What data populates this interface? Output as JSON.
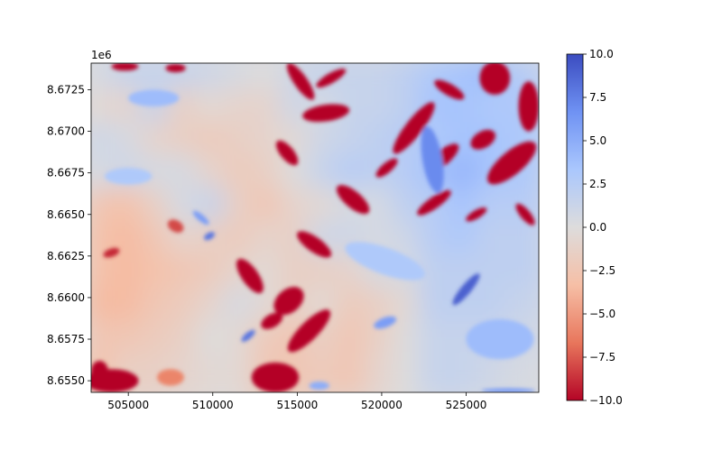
{
  "chart_data": {
    "type": "heatmap",
    "title": "",
    "xlabel": "",
    "ylabel": "",
    "y_offset_label": "1e6",
    "x_ticks": [
      {
        "value": 505000,
        "label": "505000"
      },
      {
        "value": 510000,
        "label": "510000"
      },
      {
        "value": 515000,
        "label": "515000"
      },
      {
        "value": 520000,
        "label": "520000"
      },
      {
        "value": 525000,
        "label": "525000"
      }
    ],
    "y_ticks": [
      {
        "value": 8655000,
        "label": "8.6550"
      },
      {
        "value": 8657500,
        "label": "8.6575"
      },
      {
        "value": 8660000,
        "label": "8.6600"
      },
      {
        "value": 8662500,
        "label": "8.6625"
      },
      {
        "value": 8665000,
        "label": "8.6650"
      },
      {
        "value": 8667500,
        "label": "8.6675"
      },
      {
        "value": 8670000,
        "label": "8.6700"
      },
      {
        "value": 8672500,
        "label": "8.6725"
      }
    ],
    "xlim": [
      502800,
      529300
    ],
    "ylim": [
      8654300,
      8674100
    ],
    "colormap": "coolwarm",
    "colormap_reversed": true,
    "colormap_stops": [
      "#b40426",
      "#e8765c",
      "#f6bfa6",
      "#dddcdc",
      "#aac7fd",
      "#6f92f3",
      "#3b4cc0"
    ],
    "colorbar": {
      "min": -10,
      "max": 10,
      "ticks": [
        {
          "value": 10,
          "label": "10.0"
        },
        {
          "value": 7.5,
          "label": "7.5"
        },
        {
          "value": 5,
          "label": "5.0"
        },
        {
          "value": 2.5,
          "label": "2.5"
        },
        {
          "value": 0,
          "label": "0.0"
        },
        {
          "value": -2.5,
          "label": "−2.5"
        },
        {
          "value": -5,
          "label": "−5.0"
        },
        {
          "value": -7.5,
          "label": "−7.5"
        },
        {
          "value": -10,
          "label": "−10.0"
        }
      ]
    },
    "background_pattern": {
      "cols": 16,
      "rows": 10,
      "values": [
        [
          0.5,
          1.5,
          1.5,
          1.5,
          1.0,
          0.5,
          0.0,
          1.0,
          1.5,
          1.5,
          1.5,
          2.0,
          3.0,
          3.5,
          4.0,
          2.5
        ],
        [
          -0.5,
          -1.0,
          1.5,
          -1.5,
          -0.5,
          -1.0,
          -1.0,
          1.0,
          0.5,
          1.5,
          1.5,
          2.0,
          3.5,
          3.5,
          3.0,
          3.0
        ],
        [
          1.0,
          0.5,
          -1.0,
          -1.5,
          -2.0,
          -1.5,
          -1.0,
          -0.5,
          1.0,
          1.5,
          2.0,
          2.5,
          3.0,
          3.5,
          3.5,
          3.0
        ],
        [
          0.5,
          1.0,
          0.5,
          0.5,
          -1.0,
          -2.0,
          -1.5,
          0.0,
          1.5,
          2.5,
          2.0,
          2.5,
          3.5,
          4.5,
          3.5,
          3.0
        ],
        [
          -2.5,
          -3.0,
          -1.5,
          0.5,
          1.5,
          -1.5,
          -2.5,
          -1.0,
          -0.5,
          0.5,
          0.5,
          2.0,
          2.5,
          3.5,
          2.5,
          2.5
        ],
        [
          -3.0,
          -3.5,
          -2.5,
          -1.0,
          -1.5,
          -2.0,
          -1.0,
          -1.5,
          1.0,
          1.0,
          0.5,
          1.0,
          2.5,
          3.0,
          2.0,
          2.0
        ],
        [
          -3.0,
          -3.5,
          -3.0,
          -2.5,
          -2.0,
          -1.0,
          -0.5,
          -1.5,
          -1.5,
          -1.0,
          0.5,
          0.5,
          2.0,
          2.0,
          2.0,
          2.0
        ],
        [
          -3.5,
          -3.5,
          -2.5,
          -2.0,
          -1.0,
          0.5,
          -0.5,
          -1.5,
          -0.5,
          -2.0,
          -1.5,
          -0.5,
          2.0,
          2.0,
          2.0,
          1.5
        ],
        [
          -2.5,
          -2.5,
          -2.0,
          -1.5,
          0.0,
          -0.5,
          -2.0,
          -2.5,
          -1.5,
          -2.5,
          -1.5,
          0.0,
          1.5,
          1.5,
          1.5,
          1.0
        ],
        [
          -3.0,
          -1.5,
          -1.5,
          -1.0,
          -0.5,
          -0.5,
          -2.5,
          -2.5,
          -2.0,
          -2.5,
          -1.0,
          0.0,
          1.5,
          1.5,
          1.0,
          0.5
        ]
      ]
    },
    "features": [
      {
        "x": 504000,
        "y": 8655000,
        "rx": 1600,
        "ry": 700,
        "rot": 0,
        "value": -10
      },
      {
        "x": 503300,
        "y": 8655600,
        "rx": 500,
        "ry": 600,
        "rot": 0,
        "value": -10
      },
      {
        "x": 507500,
        "y": 8655200,
        "rx": 800,
        "ry": 500,
        "rot": 0,
        "value": -6
      },
      {
        "x": 504000,
        "y": 8662700,
        "rx": 500,
        "ry": 250,
        "rot": -20,
        "value": -9
      },
      {
        "x": 504800,
        "y": 8673900,
        "rx": 800,
        "ry": 250,
        "rot": 0,
        "value": -10
      },
      {
        "x": 507800,
        "y": 8673800,
        "rx": 600,
        "ry": 250,
        "rot": 0,
        "value": -10
      },
      {
        "x": 507800,
        "y": 8664300,
        "rx": 500,
        "ry": 350,
        "rot": 30,
        "value": -8
      },
      {
        "x": 515200,
        "y": 8673000,
        "rx": 1300,
        "ry": 400,
        "rot": 55,
        "value": -10
      },
      {
        "x": 517000,
        "y": 8673200,
        "rx": 1000,
        "ry": 300,
        "rot": -30,
        "value": -10
      },
      {
        "x": 516700,
        "y": 8671100,
        "rx": 1400,
        "ry": 500,
        "rot": -8,
        "value": -10
      },
      {
        "x": 521900,
        "y": 8670200,
        "rx": 1900,
        "ry": 500,
        "rot": -52,
        "value": -10
      },
      {
        "x": 523600,
        "y": 8668400,
        "rx": 1200,
        "ry": 450,
        "rot": -40,
        "value": -10
      },
      {
        "x": 523100,
        "y": 8665700,
        "rx": 1200,
        "ry": 350,
        "rot": -35,
        "value": -10
      },
      {
        "x": 514400,
        "y": 8668700,
        "rx": 900,
        "ry": 400,
        "rot": 50,
        "value": -10
      },
      {
        "x": 518300,
        "y": 8665900,
        "rx": 1200,
        "ry": 500,
        "rot": 40,
        "value": -10
      },
      {
        "x": 516000,
        "y": 8663200,
        "rx": 1200,
        "ry": 450,
        "rot": 35,
        "value": -10
      },
      {
        "x": 520300,
        "y": 8667800,
        "rx": 800,
        "ry": 300,
        "rot": -40,
        "value": -10
      },
      {
        "x": 514500,
        "y": 8659800,
        "rx": 1000,
        "ry": 700,
        "rot": -40,
        "value": -10
      },
      {
        "x": 512200,
        "y": 8661300,
        "rx": 1200,
        "ry": 500,
        "rot": 55,
        "value": -10
      },
      {
        "x": 515700,
        "y": 8658000,
        "rx": 1700,
        "ry": 550,
        "rot": -45,
        "value": -10
      },
      {
        "x": 513500,
        "y": 8658600,
        "rx": 700,
        "ry": 400,
        "rot": -30,
        "value": -10
      },
      {
        "x": 513700,
        "y": 8655200,
        "rx": 1400,
        "ry": 900,
        "rot": 0,
        "value": -10
      },
      {
        "x": 526000,
        "y": 8669500,
        "rx": 800,
        "ry": 500,
        "rot": -30,
        "value": -10
      },
      {
        "x": 527700,
        "y": 8668100,
        "rx": 1800,
        "ry": 700,
        "rot": -40,
        "value": -10
      },
      {
        "x": 526700,
        "y": 8673200,
        "rx": 900,
        "ry": 1000,
        "rot": 0,
        "value": -10
      },
      {
        "x": 524000,
        "y": 8672500,
        "rx": 1000,
        "ry": 350,
        "rot": 30,
        "value": -10
      },
      {
        "x": 528700,
        "y": 8671500,
        "rx": 600,
        "ry": 1500,
        "rot": 0,
        "value": -10
      },
      {
        "x": 528500,
        "y": 8665000,
        "rx": 800,
        "ry": 300,
        "rot": 50,
        "value": -10
      },
      {
        "x": 525600,
        "y": 8665000,
        "rx": 700,
        "ry": 250,
        "rot": -30,
        "value": -10
      },
      {
        "x": 525000,
        "y": 8660500,
        "rx": 1200,
        "ry": 300,
        "rot": -50,
        "value": 9
      },
      {
        "x": 523000,
        "y": 8668300,
        "rx": 2000,
        "ry": 600,
        "rot": 80,
        "value": 7
      },
      {
        "x": 520200,
        "y": 8658500,
        "rx": 700,
        "ry": 300,
        "rot": -20,
        "value": 6
      },
      {
        "x": 512100,
        "y": 8657700,
        "rx": 500,
        "ry": 200,
        "rot": -40,
        "value": 8
      },
      {
        "x": 509800,
        "y": 8663700,
        "rx": 350,
        "ry": 200,
        "rot": -30,
        "value": 8
      },
      {
        "x": 509300,
        "y": 8664800,
        "rx": 600,
        "ry": 200,
        "rot": 40,
        "value": 6
      },
      {
        "x": 516300,
        "y": 8654700,
        "rx": 600,
        "ry": 250,
        "rot": 0,
        "value": 5
      },
      {
        "x": 527500,
        "y": 8654400,
        "rx": 1600,
        "ry": 150,
        "rot": 0,
        "value": 6
      },
      {
        "x": 506500,
        "y": 8672000,
        "rx": 1500,
        "ry": 500,
        "rot": 0,
        "value": 4
      },
      {
        "x": 505000,
        "y": 8667300,
        "rx": 1400,
        "ry": 500,
        "rot": 0,
        "value": 3
      },
      {
        "x": 520200,
        "y": 8662200,
        "rx": 2500,
        "ry": 800,
        "rot": 20,
        "value": 3
      },
      {
        "x": 527000,
        "y": 8657500,
        "rx": 2000,
        "ry": 1200,
        "rot": 0,
        "value": 4
      }
    ]
  }
}
